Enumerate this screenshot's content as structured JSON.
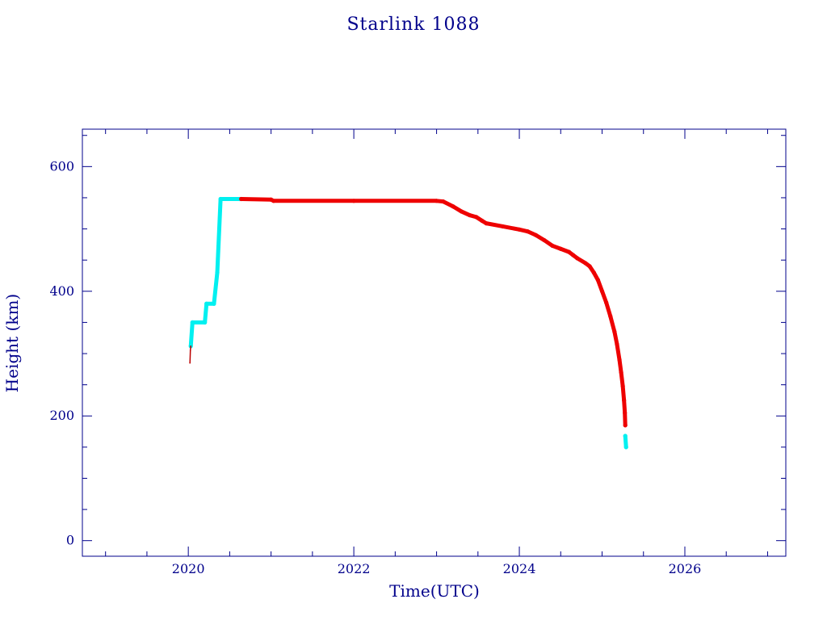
{
  "chart_data": {
    "type": "scatter",
    "title": "Starlink 1088",
    "xlabel": "Time(UTC)",
    "ylabel": "Height (km)",
    "xlim": [
      2018.72,
      2027.22
    ],
    "ylim": [
      -25,
      660
    ],
    "x_ticks": [
      2020,
      2022,
      2024,
      2026
    ],
    "y_ticks": [
      0,
      200,
      400,
      600
    ],
    "grid": false,
    "colors": {
      "axes": "#00008b",
      "text": "#00008b",
      "cyan": "#00f0f0",
      "red": "#ee0000",
      "darkred": "#bb0000"
    },
    "series": [
      {
        "color": "cyan",
        "segments": [
          [
            [
              2020.03,
              312
            ],
            [
              2020.05,
              350
            ],
            [
              2020.2,
              350
            ],
            [
              2020.22,
              380
            ],
            [
              2020.31,
              380
            ],
            [
              2020.35,
              430
            ],
            [
              2020.39,
              548
            ],
            [
              2020.62,
              548
            ]
          ],
          [
            [
              2025.28,
              168
            ],
            [
              2025.29,
              150
            ]
          ]
        ]
      },
      {
        "color": "red",
        "segments": [
          [
            [
              2020.64,
              548
            ],
            [
              2021.0,
              547
            ],
            [
              2021.03,
              545
            ],
            [
              2022.0,
              545
            ],
            [
              2023.0,
              545
            ],
            [
              2023.08,
              544
            ],
            [
              2023.2,
              536
            ],
            [
              2023.3,
              528
            ],
            [
              2023.4,
              522
            ],
            [
              2023.48,
              519
            ],
            [
              2023.55,
              513
            ],
            [
              2023.6,
              509
            ],
            [
              2023.8,
              504
            ],
            [
              2024.0,
              499
            ],
            [
              2024.1,
              496
            ],
            [
              2024.2,
              490
            ],
            [
              2024.3,
              482
            ],
            [
              2024.4,
              473
            ],
            [
              2024.5,
              468
            ],
            [
              2024.6,
              463
            ],
            [
              2024.65,
              458
            ],
            [
              2024.7,
              453
            ],
            [
              2024.8,
              445
            ],
            [
              2024.85,
              440
            ],
            [
              2024.9,
              430
            ],
            [
              2024.95,
              418
            ],
            [
              2025.0,
              400
            ],
            [
              2025.05,
              382
            ],
            [
              2025.1,
              360
            ],
            [
              2025.15,
              335
            ],
            [
              2025.18,
              315
            ],
            [
              2025.21,
              290
            ],
            [
              2025.23,
              270
            ],
            [
              2025.25,
              248
            ],
            [
              2025.265,
              225
            ],
            [
              2025.275,
              205
            ],
            [
              2025.28,
              185
            ]
          ]
        ]
      },
      {
        "color": "darkred",
        "segments": [
          [
            [
              2020.02,
              285
            ],
            [
              2020.025,
              305
            ],
            [
              2020.03,
              312
            ]
          ]
        ]
      }
    ]
  }
}
